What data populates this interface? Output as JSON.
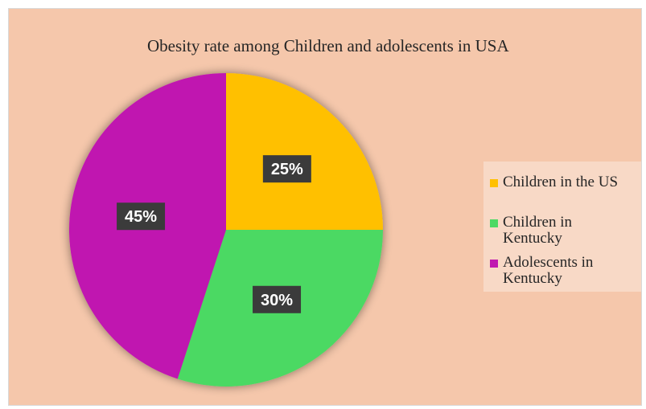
{
  "chart_data": {
    "type": "pie",
    "title": "Obesity rate among Children and adolescents in USA",
    "categories": [
      "Children in the US",
      "Children in Kentucky",
      "Adolescents in Kentucky"
    ],
    "values": [
      25,
      30,
      45
    ],
    "value_labels": [
      "25%",
      "30%",
      "45%"
    ],
    "colors": [
      "#ffc000",
      "#4cd964",
      "#c018b0"
    ],
    "legend_position": "right",
    "background_color": "#f5c7ab"
  }
}
